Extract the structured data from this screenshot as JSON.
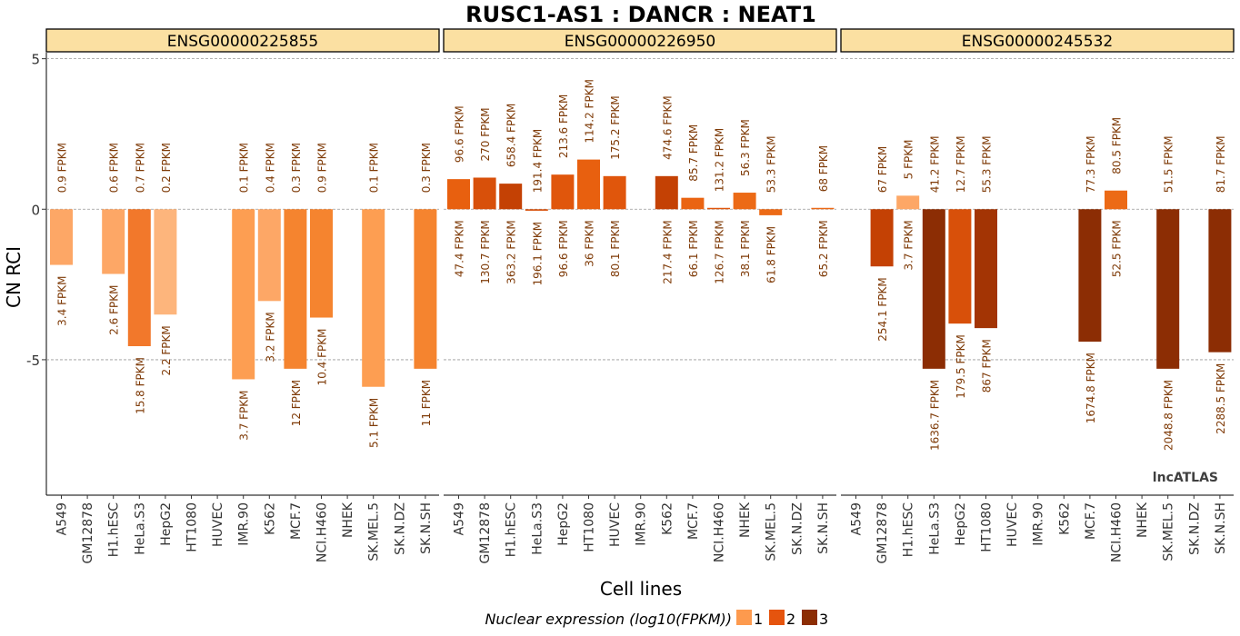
{
  "chart_data": {
    "type": "bar",
    "title": "RUSC1-AS1 : DANCR : NEAT1",
    "xlabel": "Cell lines",
    "ylabel": "CN RCI",
    "ylim": [
      -9.5,
      5.2
    ],
    "yticks": [
      5,
      0,
      -5
    ],
    "grid": "horizontal dashed at ticks",
    "watermark": "lncATLAS",
    "legend": {
      "title": "Nuclear expression (log10(FPKM))",
      "placement": "bottom",
      "levels": [
        {
          "label": "1",
          "color": "#FD9A4E"
        },
        {
          "label": "2",
          "color": "#E5540E"
        },
        {
          "label": "3",
          "color": "#8C2D04"
        }
      ]
    },
    "categories": [
      "A549",
      "GM12878",
      "H1.hESC",
      "HeLa.S3",
      "HepG2",
      "HT1080",
      "HUVEC",
      "IMR.90",
      "K562",
      "MCF.7",
      "NCI.H460",
      "NHEK",
      "SK.MEL.5",
      "SK.N.DZ",
      "SK.N.SH"
    ],
    "panels": [
      {
        "gene_id": "ENSG00000225855",
        "bars": [
          {
            "cell": "A549",
            "value": -1.85,
            "level": 1,
            "color": "#FDA766",
            "top_label": "0.9 FPKM",
            "bottom_label": "3.4 FPKM"
          },
          {
            "cell": "H1.hESC",
            "value": -2.15,
            "level": 1,
            "color": "#FDA766",
            "top_label": "0.6 FPKM",
            "bottom_label": "2.6 FPKM"
          },
          {
            "cell": "HeLa.S3",
            "value": -4.55,
            "level": 1,
            "color": "#F2782B",
            "top_label": "0.7 FPKM",
            "bottom_label": "15.8 FPKM"
          },
          {
            "cell": "HepG2",
            "value": -3.5,
            "level": 1,
            "color": "#FDB57C",
            "top_label": "0.2 FPKM",
            "bottom_label": "2.2 FPKM"
          },
          {
            "cell": "IMR.90",
            "value": -5.65,
            "level": 1,
            "color": "#FD9E52",
            "top_label": "0.1 FPKM",
            "bottom_label": "3.7 FPKM"
          },
          {
            "cell": "K562",
            "value": -3.05,
            "level": 1,
            "color": "#FDA766",
            "top_label": "0.4 FPKM",
            "bottom_label": "3.2 FPKM"
          },
          {
            "cell": "MCF.7",
            "value": -5.3,
            "level": 1,
            "color": "#F5842F",
            "top_label": "0.3 FPKM",
            "bottom_label": "12 FPKM"
          },
          {
            "cell": "NCI.H460",
            "value": -3.6,
            "level": 1,
            "color": "#F5842F",
            "top_label": "0.9 FPKM",
            "bottom_label": "10.4 FPKM"
          },
          {
            "cell": "SK.MEL.5",
            "value": -5.9,
            "level": 1,
            "color": "#FD9E52",
            "top_label": "0.1 FPKM",
            "bottom_label": "5.1 FPKM"
          },
          {
            "cell": "SK.N.SH",
            "value": -5.3,
            "level": 1,
            "color": "#F5842F",
            "top_label": "0.3 FPKM",
            "bottom_label": "11 FPKM"
          }
        ]
      },
      {
        "gene_id": "ENSG00000226950",
        "bars": [
          {
            "cell": "A549",
            "value": 1.0,
            "level": 2,
            "color": "#E8600F",
            "top_label": "96.6 FPKM",
            "bottom_label": "47.4 FPKM"
          },
          {
            "cell": "GM12878",
            "value": 1.05,
            "level": 2,
            "color": "#D8500A",
            "top_label": "270 FPKM",
            "bottom_label": "130.7 FPKM"
          },
          {
            "cell": "H1.hESC",
            "value": 0.85,
            "level": 2,
            "color": "#C44104",
            "top_label": "658.4 FPKM",
            "bottom_label": "363.2 FPKM"
          },
          {
            "cell": "HeLa.S3",
            "value": -0.05,
            "level": 2,
            "color": "#D8500A",
            "top_label": "191.4 FPKM",
            "bottom_label": "196.1 FPKM"
          },
          {
            "cell": "HepG2",
            "value": 1.15,
            "level": 2,
            "color": "#E0560C",
            "top_label": "213.6 FPKM",
            "bottom_label": "96.6 FPKM"
          },
          {
            "cell": "HT1080",
            "value": 1.65,
            "level": 2,
            "color": "#E8600F",
            "top_label": "114.2 FPKM",
            "bottom_label": "36 FPKM"
          },
          {
            "cell": "HUVEC",
            "value": 1.1,
            "level": 2,
            "color": "#E0560C",
            "top_label": "175.2 FPKM",
            "bottom_label": "80.1 FPKM"
          },
          {
            "cell": "K562",
            "value": 1.1,
            "level": 2,
            "color": "#C44104",
            "top_label": "474.6 FPKM",
            "bottom_label": "217.4 FPKM"
          },
          {
            "cell": "MCF.7",
            "value": 0.38,
            "level": 2,
            "color": "#EA6412",
            "top_label": "85.7 FPKM",
            "bottom_label": "66.1 FPKM"
          },
          {
            "cell": "NCI.H460",
            "value": 0.03,
            "level": 2,
            "color": "#E0560C",
            "top_label": "131.2 FPKM",
            "bottom_label": "126.7 FPKM"
          },
          {
            "cell": "NHEK",
            "value": 0.55,
            "level": 2,
            "color": "#EC6A16",
            "top_label": "56.3 FPKM",
            "bottom_label": "38.1 FPKM"
          },
          {
            "cell": "SK.MEL.5",
            "value": -0.2,
            "level": 2,
            "color": "#EC6A16",
            "top_label": "53.3 FPKM",
            "bottom_label": "61.8 FPKM"
          },
          {
            "cell": "SK.N.SH",
            "value": 0.03,
            "level": 2,
            "color": "#EC6A16",
            "top_label": "68 FPKM",
            "bottom_label": "65.2 FPKM"
          }
        ]
      },
      {
        "gene_id": "ENSG00000245532",
        "bars": [
          {
            "cell": "GM12878",
            "value": -1.9,
            "level": 2,
            "color": "#C44104",
            "top_label": "67 FPKM",
            "bottom_label": "254.1 FPKM"
          },
          {
            "cell": "H1.hESC",
            "value": 0.45,
            "level": 1,
            "color": "#FDA766",
            "top_label": "5 FPKM",
            "bottom_label": "3.7 FPKM"
          },
          {
            "cell": "HeLa.S3",
            "value": -5.3,
            "level": 3,
            "color": "#8C2D04",
            "top_label": "41.2 FPKM",
            "bottom_label": "1636.7 FPKM"
          },
          {
            "cell": "HepG2",
            "value": -3.8,
            "level": 2,
            "color": "#D8500A",
            "top_label": "12.7 FPKM",
            "bottom_label": "179.5 FPKM"
          },
          {
            "cell": "HT1080",
            "value": -3.95,
            "level": 3,
            "color": "#A33404",
            "top_label": "55.3 FPKM",
            "bottom_label": "867 FPKM"
          },
          {
            "cell": "MCF.7",
            "value": -4.4,
            "level": 3,
            "color": "#8C2D04",
            "top_label": "77.3 FPKM",
            "bottom_label": "1674.8 FPKM"
          },
          {
            "cell": "NCI.H460",
            "value": 0.62,
            "level": 2,
            "color": "#EC6A16",
            "top_label": "80.5 FPKM",
            "bottom_label": "52.5 FPKM"
          },
          {
            "cell": "SK.MEL.5",
            "value": -5.3,
            "level": 3,
            "color": "#8C2D04",
            "top_label": "51.5 FPKM",
            "bottom_label": "2048.8 FPKM"
          },
          {
            "cell": "SK.N.SH",
            "value": -4.75,
            "level": 3,
            "color": "#8C2D04",
            "top_label": "81.7 FPKM",
            "bottom_label": "2288.5 FPKM"
          }
        ]
      }
    ]
  }
}
